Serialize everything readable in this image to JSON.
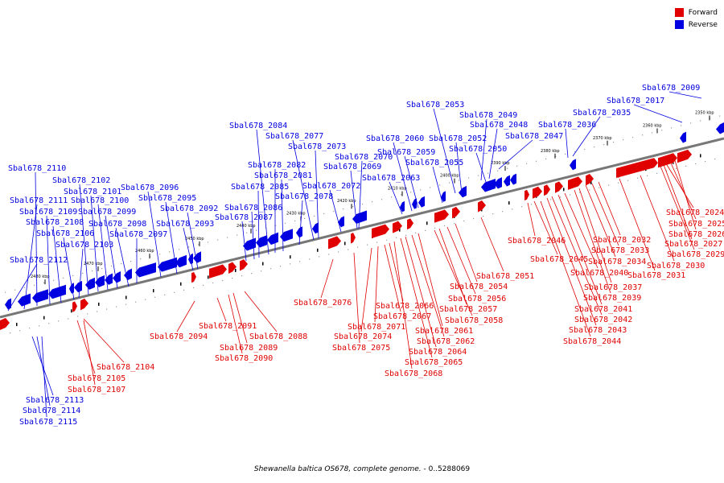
{
  "legend": [
    {
      "label": "Forward",
      "color": "#e00000"
    },
    {
      "label": "Reverse",
      "color": "#0000e0"
    }
  ],
  "caption": {
    "organism": "Shewanella baltica OS678, complete genome.",
    "range": " - 0..5288069"
  },
  "colors": {
    "forward": "#e00000",
    "reverse": "#0000e0",
    "backbone": "#777777"
  },
  "ticks": [
    "2350 kbp",
    "2360 kbp",
    "2370 kbp",
    "2380 kbp",
    "2390 kbp",
    "2400 kbp",
    "2410 kbp",
    "2420 kbp",
    "2430 kbp",
    "2440 kbp",
    "2450 kbp",
    "2460 kbp",
    "2470 kbp",
    "2480 kbp"
  ],
  "reverse_labels": [
    "Sbal678_2009",
    "Sbal678_2017",
    "Sbal678_2035",
    "Sbal678_2036",
    "Sbal678_2047",
    "Sbal678_2048",
    "Sbal678_2049",
    "Sbal678_2050",
    "Sbal678_2052",
    "Sbal678_2053",
    "Sbal678_2055",
    "Sbal678_2059",
    "Sbal678_2060",
    "Sbal678_2063",
    "Sbal678_2069",
    "Sbal678_2070",
    "Sbal678_2072",
    "Sbal678_2073",
    "Sbal678_2077",
    "Sbal678_2078",
    "Sbal678_2081",
    "Sbal678_2082",
    "Sbal678_2084",
    "Sbal678_2085",
    "Sbal678_2086",
    "Sbal678_2087",
    "Sbal678_2092",
    "Sbal678_2093",
    "Sbal678_2095",
    "Sbal678_2096",
    "Sbal678_2097",
    "Sbal678_2098",
    "Sbal678_2099",
    "Sbal678_2100",
    "Sbal678_2101",
    "Sbal678_2102",
    "Sbal678_2103",
    "Sbal678_2106",
    "Sbal678_2108",
    "Sbal678_2109",
    "Sbal678_2110",
    "Sbal678_2111",
    "Sbal678_2112",
    "Sbal678_2113",
    "Sbal678_2114",
    "Sbal678_2115"
  ],
  "forward_labels": [
    "Sbal678_2024",
    "Sbal678_2025",
    "Sbal678_2026",
    "Sbal678_2027",
    "Sbal678_2029",
    "Sbal678_2030",
    "Sbal678_2031",
    "Sbal678_2032",
    "Sbal678_2033",
    "Sbal678_2034",
    "Sbal678_2037",
    "Sbal678_2039",
    "Sbal678_2040",
    "Sbal678_2041",
    "Sbal678_2042",
    "Sbal678_2043",
    "Sbal678_2044",
    "Sbal678_2045",
    "Sbal678_2046",
    "Sbal678_2051",
    "Sbal678_2054",
    "Sbal678_2056",
    "Sbal678_2057",
    "Sbal678_2058",
    "Sbal678_2061",
    "Sbal678_2062",
    "Sbal678_2064",
    "Sbal678_2065",
    "Sbal678_2066",
    "Sbal678_2067",
    "Sbal678_2068",
    "Sbal678_2071",
    "Sbal678_2074",
    "Sbal678_2075",
    "Sbal678_2076",
    "Sbal678_2088",
    "Sbal678_2089",
    "Sbal678_2090",
    "Sbal678_2091",
    "Sbal678_2094",
    "Sbal678_2104",
    "Sbal678_2105",
    "Sbal678_2107"
  ]
}
